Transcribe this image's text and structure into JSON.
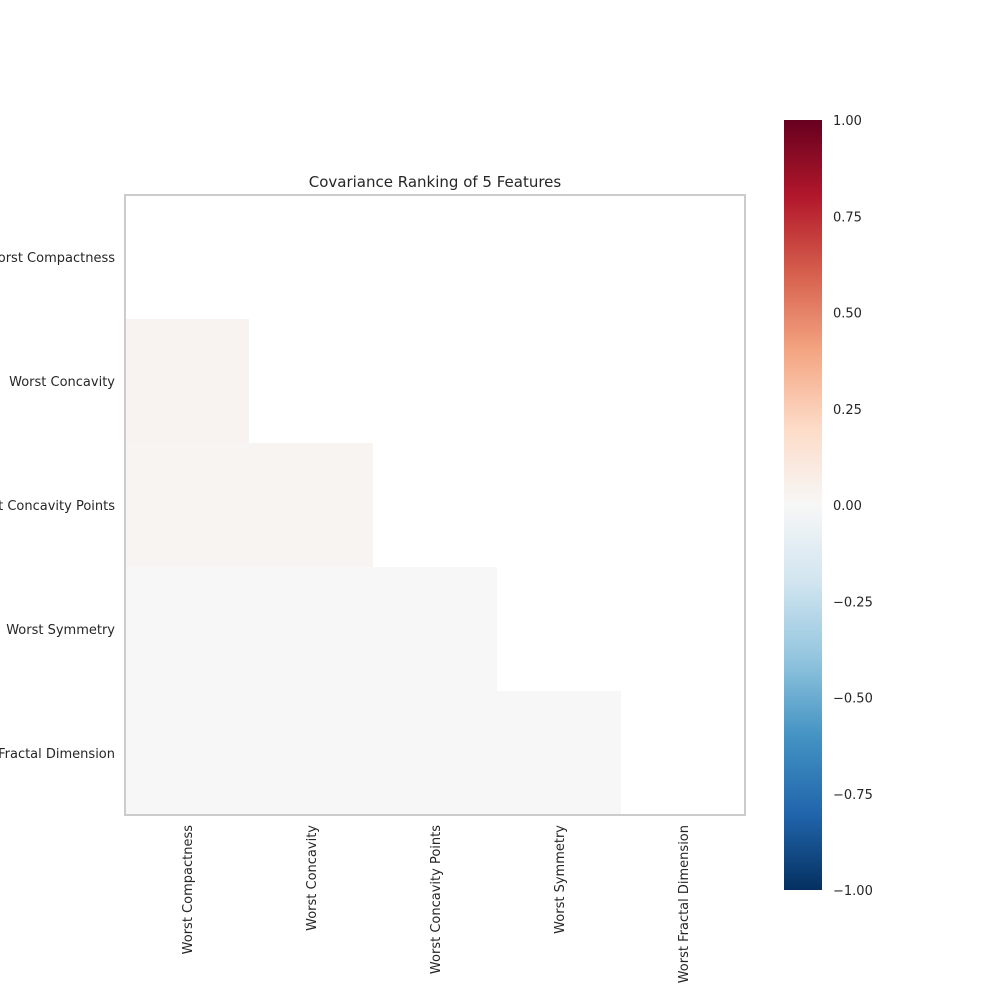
{
  "chart_data": {
    "type": "heatmap",
    "title": "Covariance Ranking of 5 Features",
    "features": [
      "Worst Compactness",
      "Worst Concavity",
      "Worst Concavity Points",
      "Worst Symmetry",
      "Worst Fractal Dimension"
    ],
    "mask": "upper-triangle-and-diagonal",
    "matrix": [
      [
        null,
        null,
        null,
        null,
        null
      ],
      [
        0.03,
        null,
        null,
        null,
        null
      ],
      [
        0.02,
        0.02,
        null,
        null,
        null
      ],
      [
        0.0,
        0.0,
        0.0,
        null,
        null
      ],
      [
        0.0,
        0.0,
        0.0,
        0.0,
        null
      ]
    ],
    "colorscale": "RdBu_r",
    "zlim": [
      -1.0,
      1.0
    ],
    "colorbar_ticks": [
      "1.00",
      "0.75",
      "0.50",
      "0.25",
      "0.00",
      "−0.25",
      "−0.50",
      "−0.75",
      "−1.00"
    ],
    "colorbar_tick_values": [
      1.0,
      0.75,
      0.5,
      0.25,
      0.0,
      -0.25,
      -0.5,
      -0.75,
      -1.0
    ],
    "grid": false,
    "colors": {
      "frame": "#cccccc",
      "text": "#262626",
      "mask_fill": "#ffffff"
    }
  }
}
